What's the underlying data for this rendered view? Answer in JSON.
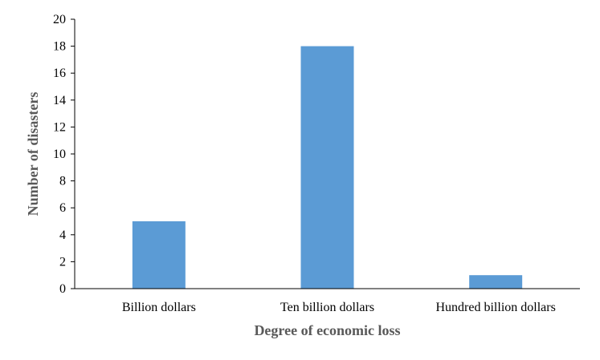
{
  "chart_data": {
    "type": "bar",
    "title": "",
    "xlabel": "Degree of economic loss",
    "ylabel": "Number of disasters",
    "categories": [
      "Billion dollars",
      "Ten billion dollars",
      "Hundred billion dollars"
    ],
    "values": [
      5,
      18,
      1
    ],
    "ylim": [
      0,
      20
    ],
    "yticks": [
      0,
      2,
      4,
      6,
      8,
      10,
      12,
      14,
      16,
      18,
      20
    ],
    "grid": false,
    "legend": "none",
    "bar_color": "#5b9bd5",
    "axis_color": "#000000"
  }
}
